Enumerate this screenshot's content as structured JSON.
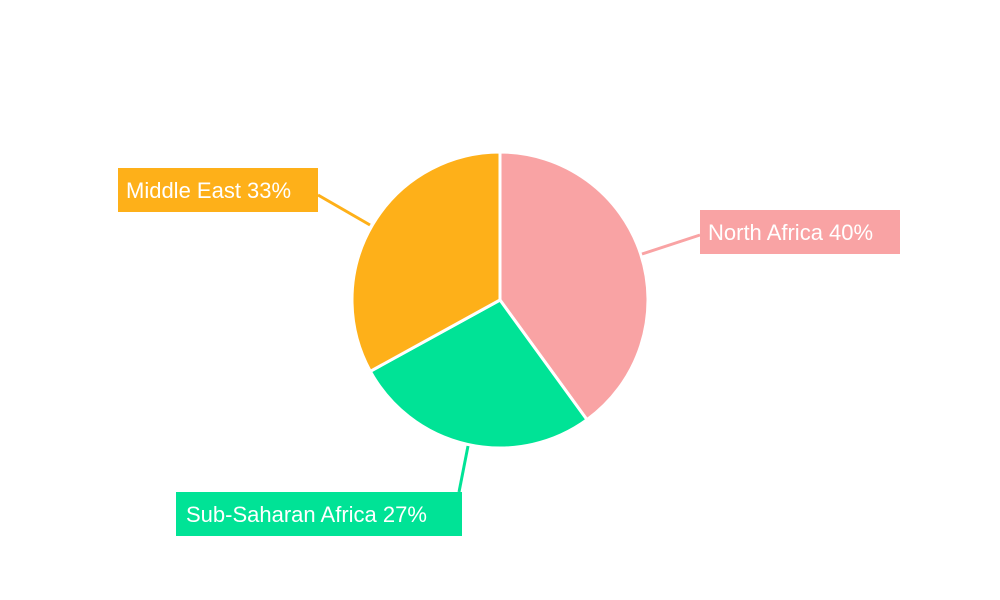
{
  "chart_data": {
    "type": "pie",
    "title": "",
    "start_angle": "top",
    "direction": "clockwise",
    "slices": [
      {
        "label": "North Africa",
        "value": 40,
        "display": "North Africa 40%",
        "color": "#F9A3A4"
      },
      {
        "label": "Sub-Saharan Africa",
        "value": 27,
        "display": "Sub-Saharan Africa 27%",
        "color": "#00E396"
      },
      {
        "label": "Middle East",
        "value": 33,
        "display": "Middle East 33%",
        "color": "#FEB019"
      }
    ]
  }
}
